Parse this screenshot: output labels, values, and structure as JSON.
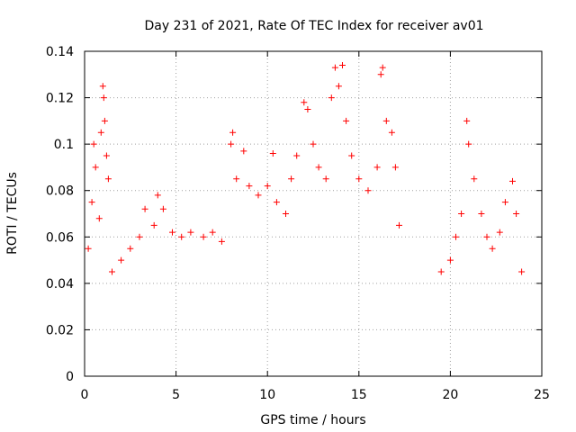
{
  "chart_data": {
    "type": "scatter",
    "title": "Day 231 of 2021, Rate Of TEC Index for receiver av01",
    "xlabel": "GPS time / hours",
    "ylabel": "ROTI / TECUs",
    "xlim": [
      0,
      25
    ],
    "ylim": [
      0,
      0.14
    ],
    "x_ticks": [
      "0",
      "5",
      "10",
      "15",
      "20",
      "25"
    ],
    "y_ticks": [
      "0",
      "0.02",
      "0.04",
      "0.06",
      "0.08",
      "0.1",
      "0.12",
      "0.14"
    ],
    "x_tick_values": [
      0,
      5,
      10,
      15,
      20,
      25
    ],
    "y_tick_values": [
      0,
      0.02,
      0.04,
      0.06,
      0.07999999999999999,
      0.1,
      0.12,
      0.14
    ],
    "grid": true,
    "marker": "plus",
    "color": "#ff0000",
    "series": [
      {
        "points": [
          [
            0.2,
            0.055
          ],
          [
            0.4,
            0.075
          ],
          [
            0.5,
            0.1
          ],
          [
            0.6,
            0.09
          ],
          [
            0.8,
            0.068
          ],
          [
            0.9,
            0.105
          ],
          [
            1.0,
            0.125
          ],
          [
            1.05,
            0.12
          ],
          [
            1.1,
            0.11
          ],
          [
            1.2,
            0.095
          ],
          [
            1.3,
            0.085
          ],
          [
            1.5,
            0.045
          ],
          [
            2.0,
            0.05
          ],
          [
            2.5,
            0.055
          ],
          [
            3.0,
            0.06
          ],
          [
            3.3,
            0.072
          ],
          [
            3.8,
            0.065
          ],
          [
            4.0,
            0.078
          ],
          [
            4.3,
            0.072
          ],
          [
            4.8,
            0.062
          ],
          [
            5.3,
            0.06
          ],
          [
            5.8,
            0.062
          ],
          [
            6.5,
            0.06
          ],
          [
            7.0,
            0.062
          ],
          [
            7.5,
            0.058
          ],
          [
            8.0,
            0.1
          ],
          [
            8.1,
            0.105
          ],
          [
            8.3,
            0.085
          ],
          [
            8.7,
            0.097
          ],
          [
            9.0,
            0.082
          ],
          [
            9.5,
            0.078
          ],
          [
            10.0,
            0.082
          ],
          [
            10.3,
            0.096
          ],
          [
            10.5,
            0.075
          ],
          [
            11.0,
            0.07
          ],
          [
            11.3,
            0.085
          ],
          [
            11.6,
            0.095
          ],
          [
            12.0,
            0.118
          ],
          [
            12.2,
            0.115
          ],
          [
            12.5,
            0.1
          ],
          [
            12.8,
            0.09
          ],
          [
            13.2,
            0.085
          ],
          [
            13.5,
            0.12
          ],
          [
            13.7,
            0.133
          ],
          [
            13.9,
            0.125
          ],
          [
            14.1,
            0.134
          ],
          [
            14.3,
            0.11
          ],
          [
            14.6,
            0.095
          ],
          [
            15.0,
            0.085
          ],
          [
            15.5,
            0.08
          ],
          [
            16.0,
            0.09
          ],
          [
            16.2,
            0.13
          ],
          [
            16.3,
            0.133
          ],
          [
            16.5,
            0.11
          ],
          [
            16.8,
            0.105
          ],
          [
            17.0,
            0.09
          ],
          [
            17.2,
            0.065
          ],
          [
            19.5,
            0.045
          ],
          [
            20.0,
            0.05
          ],
          [
            20.3,
            0.06
          ],
          [
            20.6,
            0.07
          ],
          [
            20.9,
            0.11
          ],
          [
            21.0,
            0.1
          ],
          [
            21.3,
            0.085
          ],
          [
            21.7,
            0.07
          ],
          [
            22.0,
            0.06
          ],
          [
            22.3,
            0.055
          ],
          [
            22.7,
            0.062
          ],
          [
            23.0,
            0.075
          ],
          [
            23.4,
            0.084
          ],
          [
            23.6,
            0.07
          ],
          [
            23.9,
            0.045
          ]
        ]
      }
    ]
  }
}
